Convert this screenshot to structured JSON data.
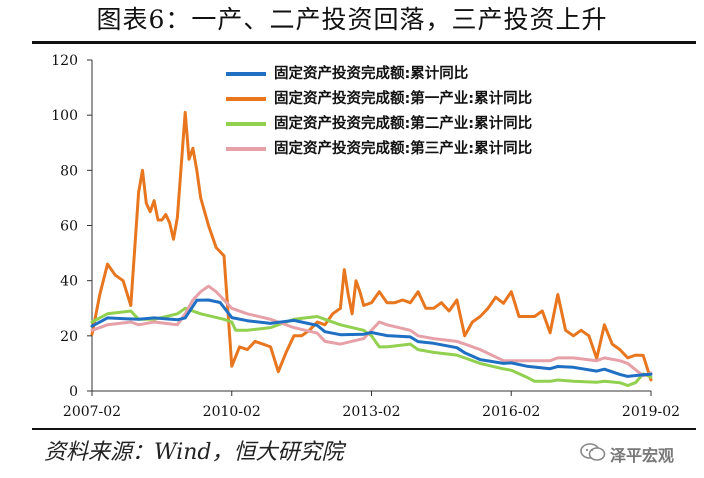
{
  "title": "图表6：一产、二产投资回落，三产投资上升",
  "source": "资料来源：Wind，恒大研究院",
  "watermark": {
    "text": "泽平宏观",
    "icon": "wechat-icon"
  },
  "chart_data": {
    "type": "line",
    "title": "图表6：一产、二产投资回落，三产投资上升",
    "xlabel": "",
    "ylabel": "",
    "ylim": [
      0,
      120
    ],
    "yticks": [
      0,
      20,
      40,
      60,
      80,
      100,
      120
    ],
    "xticks": [
      "2007-02",
      "2010-02",
      "2013-02",
      "2016-02",
      "2019-02"
    ],
    "x_range": [
      "2007-02",
      "2019-02"
    ],
    "grid": false,
    "legend_position": "top-right",
    "series": [
      {
        "name": "固定资产投资完成额:累计同比",
        "color": "#1f6fc3",
        "points": [
          [
            "2007-02",
            23.5
          ],
          [
            "2007-06",
            26.5
          ],
          [
            "2008-02",
            26
          ],
          [
            "2008-06",
            26.5
          ],
          [
            "2008-12",
            25.8
          ],
          [
            "2009-02",
            26.5
          ],
          [
            "2009-05",
            32.9
          ],
          [
            "2009-08",
            33
          ],
          [
            "2009-11",
            32.1
          ],
          [
            "2010-02",
            26.6
          ],
          [
            "2010-06",
            25.5
          ],
          [
            "2010-12",
            24.5
          ],
          [
            "2011-02",
            24.9
          ],
          [
            "2011-06",
            25.6
          ],
          [
            "2011-12",
            23.8
          ],
          [
            "2012-02",
            21.5
          ],
          [
            "2012-06",
            20.4
          ],
          [
            "2012-12",
            20.6
          ],
          [
            "2013-02",
            21.2
          ],
          [
            "2013-06",
            20.1
          ],
          [
            "2013-12",
            19.6
          ],
          [
            "2014-02",
            17.9
          ],
          [
            "2014-06",
            17.3
          ],
          [
            "2014-12",
            15.7
          ],
          [
            "2015-02",
            13.9
          ],
          [
            "2015-06",
            11.4
          ],
          [
            "2015-12",
            10
          ],
          [
            "2016-02",
            10.2
          ],
          [
            "2016-06",
            9
          ],
          [
            "2016-12",
            8.1
          ],
          [
            "2017-02",
            8.9
          ],
          [
            "2017-06",
            8.6
          ],
          [
            "2017-12",
            7.2
          ],
          [
            "2018-02",
            7.9
          ],
          [
            "2018-06",
            6
          ],
          [
            "2018-08",
            5.3
          ],
          [
            "2018-12",
            5.9
          ],
          [
            "2019-02",
            6.1
          ]
        ]
      },
      {
        "name": "固定资产投资完成额:第一产业:累计同比",
        "color": "#e8761f",
        "points": [
          [
            "2007-02",
            20.5
          ],
          [
            "2007-04",
            35
          ],
          [
            "2007-06",
            46
          ],
          [
            "2007-08",
            42
          ],
          [
            "2007-10",
            40
          ],
          [
            "2007-12",
            31
          ],
          [
            "2008-02",
            72
          ],
          [
            "2008-03",
            80
          ],
          [
            "2008-04",
            68
          ],
          [
            "2008-05",
            65
          ],
          [
            "2008-06",
            69
          ],
          [
            "2008-07",
            62
          ],
          [
            "2008-08",
            62
          ],
          [
            "2008-09",
            64
          ],
          [
            "2008-10",
            61
          ],
          [
            "2008-11",
            55
          ],
          [
            "2008-12",
            63
          ],
          [
            "2009-02",
            101
          ],
          [
            "2009-03",
            84
          ],
          [
            "2009-04",
            88
          ],
          [
            "2009-05",
            80
          ],
          [
            "2009-06",
            70
          ],
          [
            "2009-08",
            60
          ],
          [
            "2009-10",
            52
          ],
          [
            "2009-12",
            49
          ],
          [
            "2010-02",
            9
          ],
          [
            "2010-04",
            16
          ],
          [
            "2010-06",
            15
          ],
          [
            "2010-08",
            18
          ],
          [
            "2010-10",
            17
          ],
          [
            "2010-12",
            16
          ],
          [
            "2011-02",
            7
          ],
          [
            "2011-04",
            14
          ],
          [
            "2011-06",
            20
          ],
          [
            "2011-08",
            20
          ],
          [
            "2011-10",
            22
          ],
          [
            "2011-12",
            25
          ],
          [
            "2012-02",
            24
          ],
          [
            "2012-04",
            28
          ],
          [
            "2012-06",
            30
          ],
          [
            "2012-07",
            44
          ],
          [
            "2012-08",
            35
          ],
          [
            "2012-09",
            28
          ],
          [
            "2012-10",
            40
          ],
          [
            "2012-11",
            36
          ],
          [
            "2012-12",
            31
          ],
          [
            "2013-02",
            32
          ],
          [
            "2013-04",
            36
          ],
          [
            "2013-06",
            32
          ],
          [
            "2013-08",
            32
          ],
          [
            "2013-10",
            33
          ],
          [
            "2013-12",
            32
          ],
          [
            "2014-02",
            36
          ],
          [
            "2014-04",
            30
          ],
          [
            "2014-06",
            30
          ],
          [
            "2014-08",
            32
          ],
          [
            "2014-10",
            29
          ],
          [
            "2014-12",
            33
          ],
          [
            "2015-02",
            20
          ],
          [
            "2015-04",
            25
          ],
          [
            "2015-06",
            27
          ],
          [
            "2015-08",
            30
          ],
          [
            "2015-10",
            34
          ],
          [
            "2015-12",
            31.8
          ],
          [
            "2016-02",
            36
          ],
          [
            "2016-04",
            27
          ],
          [
            "2016-06",
            27
          ],
          [
            "2016-08",
            27
          ],
          [
            "2016-10",
            29
          ],
          [
            "2016-12",
            21.1
          ],
          [
            "2017-02",
            35
          ],
          [
            "2017-04",
            22
          ],
          [
            "2017-06",
            20
          ],
          [
            "2017-08",
            22
          ],
          [
            "2017-10",
            20
          ],
          [
            "2017-12",
            11.8
          ],
          [
            "2018-02",
            24
          ],
          [
            "2018-04",
            17
          ],
          [
            "2018-06",
            15
          ],
          [
            "2018-08",
            12
          ],
          [
            "2018-10",
            13
          ],
          [
            "2018-12",
            12.9
          ],
          [
            "2019-02",
            4
          ]
        ]
      },
      {
        "name": "固定资产投资完成额:第二产业:累计同比",
        "color": "#92d050",
        "points": [
          [
            "2007-02",
            25
          ],
          [
            "2007-06",
            28
          ],
          [
            "2007-12",
            29
          ],
          [
            "2008-02",
            26
          ],
          [
            "2008-06",
            26
          ],
          [
            "2008-12",
            28
          ],
          [
            "2009-02",
            30
          ],
          [
            "2009-06",
            28
          ],
          [
            "2009-12",
            26
          ],
          [
            "2010-02",
            25
          ],
          [
            "2010-03",
            22
          ],
          [
            "2010-06",
            22
          ],
          [
            "2010-12",
            23
          ],
          [
            "2011-02",
            24
          ],
          [
            "2011-06",
            26
          ],
          [
            "2011-12",
            27
          ],
          [
            "2012-02",
            26
          ],
          [
            "2012-06",
            24
          ],
          [
            "2012-12",
            22
          ],
          [
            "2013-02",
            20
          ],
          [
            "2013-04",
            16
          ],
          [
            "2013-06",
            16
          ],
          [
            "2013-12",
            17
          ],
          [
            "2014-02",
            15
          ],
          [
            "2014-06",
            14
          ],
          [
            "2014-12",
            13
          ],
          [
            "2015-02",
            12
          ],
          [
            "2015-06",
            10
          ],
          [
            "2015-12",
            8
          ],
          [
            "2016-02",
            7.5
          ],
          [
            "2016-06",
            5
          ],
          [
            "2016-08",
            3.5
          ],
          [
            "2016-12",
            3.5
          ],
          [
            "2017-02",
            4
          ],
          [
            "2017-06",
            3.5
          ],
          [
            "2017-12",
            3.2
          ],
          [
            "2018-02",
            3.5
          ],
          [
            "2018-06",
            3
          ],
          [
            "2018-08",
            2
          ],
          [
            "2018-10",
            3
          ],
          [
            "2018-12",
            6.2
          ],
          [
            "2019-02",
            5
          ]
        ]
      },
      {
        "name": "固定资产投资完成额:第三产业:累计同比",
        "color": "#e6a0a8",
        "points": [
          [
            "2007-02",
            22
          ],
          [
            "2007-06",
            24
          ],
          [
            "2007-12",
            25
          ],
          [
            "2008-02",
            24
          ],
          [
            "2008-06",
            25
          ],
          [
            "2008-12",
            24
          ],
          [
            "2009-02",
            28
          ],
          [
            "2009-04",
            33
          ],
          [
            "2009-06",
            36
          ],
          [
            "2009-08",
            38
          ],
          [
            "2009-10",
            36
          ],
          [
            "2009-12",
            33
          ],
          [
            "2010-02",
            30
          ],
          [
            "2010-06",
            28
          ],
          [
            "2010-12",
            26
          ],
          [
            "2011-02",
            25
          ],
          [
            "2011-06",
            23
          ],
          [
            "2011-12",
            21
          ],
          [
            "2012-02",
            18
          ],
          [
            "2012-06",
            17
          ],
          [
            "2012-12",
            19
          ],
          [
            "2013-02",
            22
          ],
          [
            "2013-04",
            25
          ],
          [
            "2013-06",
            24
          ],
          [
            "2013-12",
            22
          ],
          [
            "2014-02",
            20
          ],
          [
            "2014-06",
            19
          ],
          [
            "2014-12",
            18
          ],
          [
            "2015-02",
            17
          ],
          [
            "2015-06",
            15
          ],
          [
            "2015-12",
            11
          ],
          [
            "2016-02",
            11
          ],
          [
            "2016-06",
            11
          ],
          [
            "2016-12",
            11
          ],
          [
            "2017-02",
            12
          ],
          [
            "2017-06",
            12
          ],
          [
            "2017-12",
            11
          ],
          [
            "2018-02",
            12
          ],
          [
            "2018-06",
            11
          ],
          [
            "2018-08",
            10
          ],
          [
            "2018-12",
            5.5
          ],
          [
            "2019-02",
            6.5
          ]
        ]
      }
    ]
  }
}
